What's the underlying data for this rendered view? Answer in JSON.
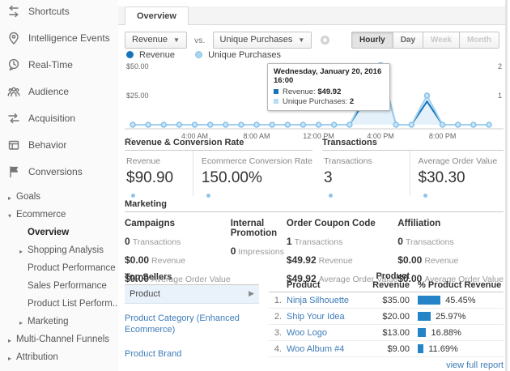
{
  "window": {
    "tab_label": "Overview"
  },
  "sidebar": {
    "items": [
      {
        "label": "Shortcuts"
      },
      {
        "label": "Intelligence Events"
      },
      {
        "label": "Real-Time"
      },
      {
        "label": "Audience"
      },
      {
        "label": "Acquisition"
      },
      {
        "label": "Behavior"
      },
      {
        "label": "Conversions"
      },
      {
        "label": "Goals"
      },
      {
        "label": "Ecommerce"
      },
      {
        "label": "Overview"
      },
      {
        "label": "Shopping Analysis"
      },
      {
        "label": "Product Performance"
      },
      {
        "label": "Sales Performance"
      },
      {
        "label": "Product List Perform..."
      },
      {
        "label": "Marketing"
      },
      {
        "label": "Multi-Channel Funnels"
      },
      {
        "label": "Attribution"
      }
    ]
  },
  "controls": {
    "metric_primary": "Revenue",
    "vs_label": "vs.",
    "metric_secondary": "Unique Purchases",
    "granularity": [
      "Hourly",
      "Day",
      "Week",
      "Month"
    ],
    "granularity_active": "Hourly"
  },
  "legend": {
    "series": [
      {
        "label": "Revenue",
        "color": "#1874b9"
      },
      {
        "label": "Unique Purchases",
        "color": "#a8d4f0"
      }
    ]
  },
  "chart_data": {
    "type": "line",
    "x_unit": "hour of Wednesday, January 20, 2016",
    "x": [
      0,
      1,
      2,
      3,
      4,
      5,
      6,
      7,
      8,
      9,
      10,
      11,
      12,
      13,
      14,
      15,
      16,
      17,
      18,
      19,
      20,
      21,
      22,
      23
    ],
    "x_tick_labels": [
      {
        "hour": 4,
        "label": "4:00 AM"
      },
      {
        "hour": 8,
        "label": "8:00 AM"
      },
      {
        "hour": 12,
        "label": "12:00 PM"
      },
      {
        "hour": 16,
        "label": "4:00 PM"
      },
      {
        "hour": 20,
        "label": "8:00 PM"
      }
    ],
    "truncated_left_label": "...",
    "left_axis": {
      "max": 50,
      "ticks": [
        {
          "value": 50,
          "label": "$50.00"
        },
        {
          "value": 25,
          "label": "$25.00"
        }
      ]
    },
    "right_axis": {
      "max": 2,
      "ticks": [
        {
          "value": 2,
          "label": "2"
        },
        {
          "value": 1,
          "label": "1"
        }
      ]
    },
    "series": [
      {
        "name": "Revenue",
        "axis": "left",
        "color": "#1874b9",
        "values": [
          0,
          0,
          0,
          0,
          0,
          0,
          0,
          0,
          0,
          0,
          0,
          0,
          0,
          0,
          0,
          20.98,
          49.92,
          0,
          0,
          20,
          0,
          0,
          0,
          0
        ]
      },
      {
        "name": "Unique Purchases",
        "axis": "right",
        "color": "#a3d0ee",
        "fill": "#ddedf9",
        "values": [
          0,
          0,
          0,
          0,
          0,
          0,
          0,
          0,
          0,
          0,
          0,
          0,
          0,
          0,
          0,
          1,
          2,
          0,
          0,
          1,
          0,
          0,
          0,
          0
        ]
      }
    ],
    "highlight_hour": 16,
    "grid": false,
    "legend_position": "top-left"
  },
  "tooltip": {
    "title": "Wednesday, January 20, 2016 16:00",
    "rows": [
      {
        "label": "Revenue:",
        "value": "$49.92",
        "color": "#1874b9"
      },
      {
        "label": "Unique Purchases:",
        "value": "2",
        "color": "#b7dcf3"
      }
    ]
  },
  "metric_groups": [
    {
      "title": "Revenue & Conversion Rate",
      "cards": [
        {
          "label": "Revenue",
          "value": "$90.90"
        },
        {
          "label": "Ecommerce Conversion Rate",
          "value": "150.00%"
        }
      ]
    },
    {
      "title": "Transactions",
      "cards": [
        {
          "label": "Transactions",
          "value": "3"
        },
        {
          "label": "Average Order Value",
          "value": "$30.30"
        }
      ]
    }
  ],
  "marketing": {
    "title": "Marketing",
    "columns": [
      {
        "title": "Campaigns",
        "metrics": [
          {
            "value": "0",
            "label": "Transactions"
          },
          {
            "value": "$0.00",
            "label": "Revenue"
          },
          {
            "value": "$0.00",
            "label": "Average Order Value"
          }
        ]
      },
      {
        "title": "Internal Promotion",
        "metrics": [
          {
            "value": "0",
            "label": "Impressions"
          }
        ]
      },
      {
        "title": "Order Coupon Code",
        "metrics": [
          {
            "value": "1",
            "label": "Transactions"
          },
          {
            "value": "$49.92",
            "label": "Revenue"
          },
          {
            "value": "$49.92",
            "label": "Average Order Value"
          }
        ]
      },
      {
        "title": "Affiliation",
        "metrics": [
          {
            "value": "0",
            "label": "Transactions"
          },
          {
            "value": "$0.00",
            "label": "Revenue"
          },
          {
            "value": "$0.00",
            "label": "Average Order Value"
          }
        ]
      }
    ]
  },
  "top_sellers": {
    "title": "Top Sellers",
    "selected_item": "Product",
    "links": [
      "Product Category (Enhanced Ecommerce)",
      "Product Brand"
    ]
  },
  "product_table": {
    "headers": {
      "product": "Product",
      "revenue": "Product Revenue",
      "pct": "% Product Revenue"
    },
    "rows": [
      {
        "rank": "1.",
        "name": "Ninja Silhouette",
        "revenue": "$35.00",
        "pct_label": "45.45%",
        "pct": 45.45
      },
      {
        "rank": "2.",
        "name": "Ship Your Idea",
        "revenue": "$20.00",
        "pct_label": "25.97%",
        "pct": 25.97
      },
      {
        "rank": "3.",
        "name": "Woo Logo",
        "revenue": "$13.00",
        "pct_label": "16.88%",
        "pct": 16.88
      },
      {
        "rank": "4.",
        "name": "Woo Album #4",
        "revenue": "$9.00",
        "pct_label": "11.69%",
        "pct": 11.69
      }
    ],
    "bar_color": "#2484c6",
    "footer_link": "view full report"
  }
}
